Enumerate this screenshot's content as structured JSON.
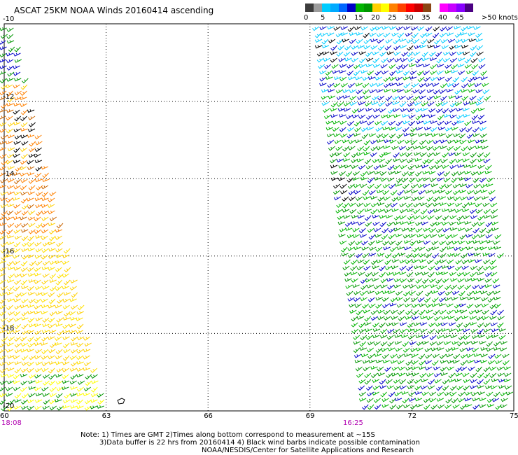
{
  "title": "ASCAT 25KM NOAA Winds 20160414 ascending",
  "legend": {
    "colors": [
      "#3c3c3c",
      "#9c9c9c",
      "#00ccff",
      "#00aaff",
      "#0066ff",
      "#0000c8",
      "#00b400",
      "#009600",
      "#ffd000",
      "#ffff00",
      "#ff8000",
      "#ff4000",
      "#ff0000",
      "#c80000",
      "#8b4513",
      "#ffffff",
      "#ff00ff",
      "#c800ff",
      "#8800ff",
      "#4b0082"
    ],
    "labels": [
      "0",
      "5",
      "10",
      "15",
      "20",
      "25",
      "30",
      "35",
      "40",
      "45"
    ],
    "units": ">50 knots"
  },
  "map": {
    "lon_ticks": [
      "60",
      "63",
      "66",
      "69",
      "72",
      "75"
    ],
    "lat_ticks": [
      "-10",
      "-12",
      "-14",
      "-16",
      "-18",
      "-20"
    ],
    "lon_range": [
      60,
      75
    ],
    "lat_range": [
      -20,
      -10
    ],
    "gridlines": true,
    "pass_times": [
      "18:08",
      "16:25"
    ]
  },
  "notes": [
    "Note: 1) Times are GMT 2)Times along bottom correspond to measurement at ~15S",
    "3)Data buffer is 22 hrs from 20160414 4) Black wind barbs indicate possible contamination",
    "NOAA/NESDIS/Center for Satellite Applications and Research"
  ]
}
